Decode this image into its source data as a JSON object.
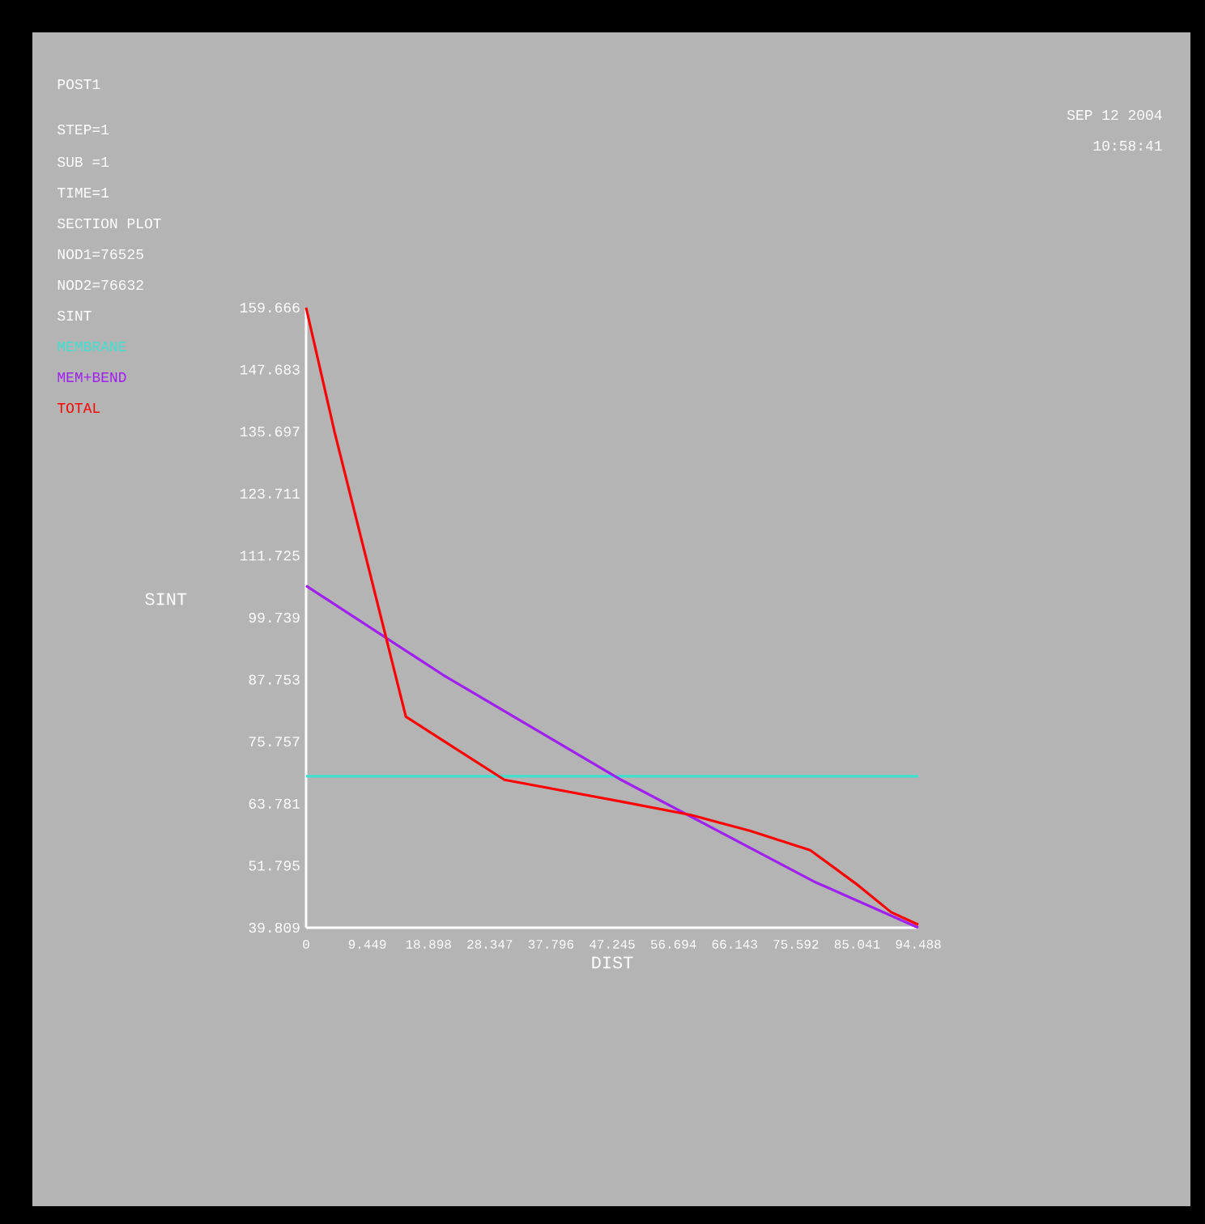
{
  "chart_data": {
    "type": "line",
    "xlabel": "DIST",
    "ylabel": "SINT",
    "annotations": [
      "POST1",
      "STEP=1",
      "SUB =1",
      "TIME=1",
      "SECTION PLOT",
      "NOD1=76525",
      "NOD2=76632",
      "SINT",
      "SEP 12 2004",
      "10:58:41"
    ],
    "xlim": [
      0,
      94.488
    ],
    "ylim": [
      39.809,
      159.666
    ],
    "xticks": [
      0,
      9.449,
      18.898,
      28.347,
      37.796,
      47.245,
      56.694,
      66.143,
      75.592,
      85.041,
      94.488
    ],
    "yticks": [
      39.809,
      51.795,
      63.781,
      75.757,
      87.753,
      99.739,
      111.725,
      123.711,
      135.697,
      147.683,
      159.666
    ],
    "series": [
      {
        "name": "MEMBRANE",
        "color": "#40e0d0",
        "x": [
          0,
          94.488
        ],
        "values": [
          69.1,
          69.1
        ]
      },
      {
        "name": "MEM+BEND",
        "color": "#a020f0",
        "x": [
          0,
          21.1,
          48.6,
          78.6,
          94.488
        ],
        "values": [
          105.9,
          88.7,
          68.4,
          48.6,
          39.809
        ]
      },
      {
        "name": "TOTAL",
        "color": "#ff0000",
        "x": [
          0,
          4.4,
          15.4,
          21.1,
          30.6,
          48.6,
          59.4,
          68.6,
          77.8,
          85.2,
          90.3,
          94.488
        ],
        "values": [
          159.666,
          135.6,
          80.6,
          76.0,
          68.4,
          64.2,
          61.6,
          58.5,
          54.8,
          48.0,
          42.8,
          40.4
        ]
      }
    ]
  }
}
